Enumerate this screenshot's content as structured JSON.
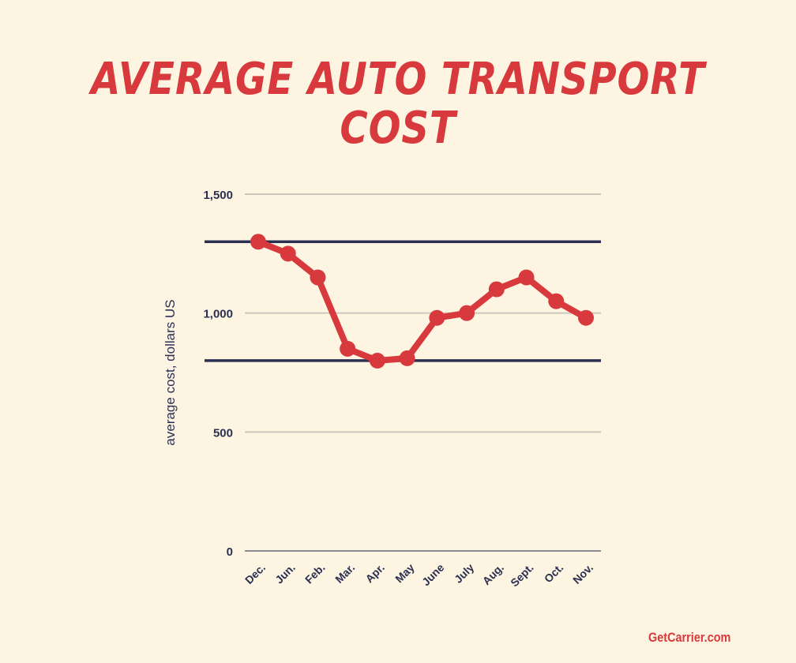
{
  "title": "Average Auto Transport Cost",
  "brand": "GetCarrier.com",
  "colors": {
    "background": "#fdf5e2",
    "accent": "#d7393d",
    "axis_text": "#2b2f52",
    "gridline": "#cfc7bd",
    "reference_line": "#2b2f52"
  },
  "chart_data": {
    "type": "line",
    "title": "Average Auto Transport Cost",
    "xlabel": "",
    "ylabel": "average cost, dollars US",
    "categories": [
      "Dec.",
      "Jun.",
      "Feb.",
      "Mar.",
      "Apr.",
      "May",
      "June",
      "July",
      "Aug.",
      "Sept.",
      "Oct.",
      "Nov."
    ],
    "series": [
      {
        "name": "average cost",
        "values": [
          1300,
          1250,
          1150,
          850,
          800,
          810,
          980,
          1000,
          1100,
          1150,
          1050,
          980
        ]
      }
    ],
    "ylim": [
      0,
      1500
    ],
    "yticks": [
      0,
      500,
      1000,
      1500
    ],
    "ytick_labels": [
      "0",
      "500",
      "1,000",
      "1,500"
    ],
    "reference_lines": [
      1300,
      800
    ],
    "grid": true,
    "legend": "none"
  }
}
